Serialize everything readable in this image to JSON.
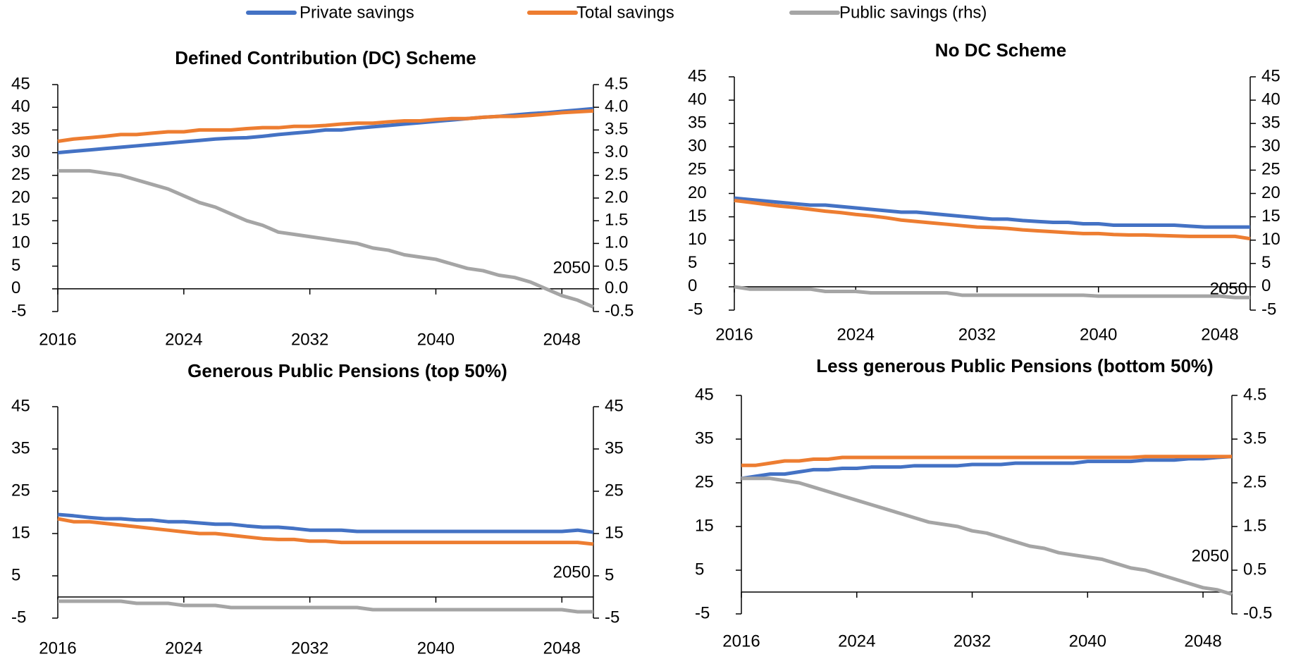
{
  "chart_data": [
    {
      "type": "line",
      "title": "Defined Contribution (DC) Scheme",
      "x": [
        2016,
        2017,
        2018,
        2019,
        2020,
        2021,
        2022,
        2023,
        2024,
        2025,
        2026,
        2027,
        2028,
        2029,
        2030,
        2031,
        2032,
        2033,
        2034,
        2035,
        2036,
        2037,
        2038,
        2039,
        2040,
        2041,
        2042,
        2043,
        2044,
        2045,
        2046,
        2047,
        2048,
        2049,
        2050
      ],
      "xlim": [
        2016,
        2050
      ],
      "xticks": [
        2016,
        2024,
        2032,
        2040,
        2048
      ],
      "ylim": [
        -5,
        45
      ],
      "yticks": [
        -5,
        0,
        5,
        10,
        15,
        20,
        25,
        30,
        35,
        40,
        45
      ],
      "y2lim": [
        -0.5,
        4.5
      ],
      "y2ticks": [
        -0.5,
        {
          "value": 0,
          "label": "0.0"
        },
        0.5,
        {
          "value": 1,
          "label": "1.0"
        },
        1.5,
        {
          "value": 2,
          "label": "2.0"
        },
        2.5,
        {
          "value": 3,
          "label": "3.0"
        },
        3.5,
        {
          "value": 4,
          "label": "4.0"
        },
        4.5
      ],
      "annotation": "2050",
      "series": [
        {
          "name": "Private savings",
          "color": "#4472c4",
          "values": [
            30,
            30.3,
            30.6,
            30.9,
            31.2,
            31.5,
            31.8,
            32.1,
            32.4,
            32.7,
            33,
            33.2,
            33.3,
            33.6,
            34,
            34.3,
            34.6,
            35,
            35,
            35.4,
            35.7,
            36,
            36.3,
            36.6,
            36.9,
            37.2,
            37.5,
            37.8,
            38,
            38.3,
            38.6,
            38.8,
            39.1,
            39.4,
            39.7
          ]
        },
        {
          "name": "Total savings",
          "color": "#ed7d31",
          "values": [
            32.5,
            33,
            33.3,
            33.6,
            34,
            34,
            34.3,
            34.6,
            34.6,
            35,
            35,
            35,
            35.3,
            35.5,
            35.5,
            35.8,
            35.8,
            36,
            36.3,
            36.5,
            36.5,
            36.8,
            37,
            37,
            37.3,
            37.5,
            37.5,
            37.8,
            38,
            38,
            38.2,
            38.5,
            38.8,
            39,
            39.2
          ]
        },
        {
          "name": "Public savings (rhs)",
          "color": "#a5a5a5",
          "axis": "y2",
          "values": [
            2.6,
            2.6,
            2.6,
            2.55,
            2.5,
            2.4,
            2.3,
            2.2,
            2.05,
            1.9,
            1.8,
            1.65,
            1.5,
            1.4,
            1.25,
            1.2,
            1.15,
            1.1,
            1.05,
            1.0,
            0.9,
            0.85,
            0.75,
            0.7,
            0.65,
            0.55,
            0.45,
            0.4,
            0.3,
            0.25,
            0.15,
            0.0,
            -0.15,
            -0.25,
            -0.4
          ]
        }
      ]
    },
    {
      "type": "line",
      "title": "No DC Scheme",
      "x": [
        2016,
        2017,
        2018,
        2019,
        2020,
        2021,
        2022,
        2023,
        2024,
        2025,
        2026,
        2027,
        2028,
        2029,
        2030,
        2031,
        2032,
        2033,
        2034,
        2035,
        2036,
        2037,
        2038,
        2039,
        2040,
        2041,
        2042,
        2043,
        2044,
        2045,
        2046,
        2047,
        2048,
        2049,
        2050
      ],
      "xlim": [
        2016,
        2050
      ],
      "xticks": [
        2016,
        2024,
        2032,
        2040,
        2048
      ],
      "ylim": [
        -5,
        45
      ],
      "yticks": [
        -5,
        0,
        5,
        10,
        15,
        20,
        25,
        30,
        35,
        40,
        45
      ],
      "y2lim": [
        -5,
        45
      ],
      "y2ticks": [
        -5,
        0,
        5,
        10,
        15,
        20,
        25,
        30,
        35,
        40,
        45
      ],
      "annotation": "2050",
      "series": [
        {
          "color": "#4472c4",
          "values": [
            19,
            18.7,
            18.4,
            18.1,
            17.8,
            17.5,
            17.5,
            17.2,
            16.9,
            16.6,
            16.3,
            16,
            16,
            15.7,
            15.4,
            15.1,
            14.8,
            14.5,
            14.5,
            14.2,
            14,
            13.8,
            13.8,
            13.5,
            13.5,
            13.2,
            13.2,
            13.2,
            13.2,
            13.2,
            13,
            12.8,
            12.8,
            12.8,
            12.8
          ]
        },
        {
          "color": "#ed7d31",
          "values": [
            18.5,
            18.1,
            17.7,
            17.3,
            17,
            16.6,
            16.2,
            15.9,
            15.5,
            15.2,
            14.8,
            14.3,
            14,
            13.7,
            13.4,
            13.1,
            12.8,
            12.7,
            12.5,
            12.2,
            12,
            11.8,
            11.6,
            11.4,
            11.4,
            11.2,
            11.1,
            11.1,
            11,
            10.9,
            10.8,
            10.8,
            10.8,
            10.8,
            10.3
          ]
        },
        {
          "color": "#a5a5a5",
          "axis": "y2",
          "values": [
            0,
            -0.5,
            -0.5,
            -0.5,
            -0.5,
            -0.5,
            -1,
            -1,
            -1,
            -1.3,
            -1.3,
            -1.3,
            -1.3,
            -1.3,
            -1.3,
            -1.8,
            -1.8,
            -1.8,
            -1.8,
            -1.8,
            -1.8,
            -1.8,
            -1.8,
            -1.8,
            -2,
            -2,
            -2,
            -2,
            -2,
            -2,
            -2,
            -2,
            -2,
            -2.3,
            -2.3
          ]
        }
      ]
    },
    {
      "type": "line",
      "title": "Generous Public Pensions (top 50%)",
      "x": [
        2016,
        2017,
        2018,
        2019,
        2020,
        2021,
        2022,
        2023,
        2024,
        2025,
        2026,
        2027,
        2028,
        2029,
        2030,
        2031,
        2032,
        2033,
        2034,
        2035,
        2036,
        2037,
        2038,
        2039,
        2040,
        2041,
        2042,
        2043,
        2044,
        2045,
        2046,
        2047,
        2048,
        2049,
        2050
      ],
      "xlim": [
        2016,
        2050
      ],
      "xticks": [
        2016,
        2024,
        2032,
        2040,
        2048
      ],
      "ylim": [
        -5,
        45
      ],
      "yticks": [
        -5,
        5,
        15,
        25,
        35,
        45
      ],
      "y2lim": [
        -5,
        45
      ],
      "y2ticks": [
        -5,
        5,
        15,
        25,
        35,
        45
      ],
      "annotation": "2050",
      "series": [
        {
          "color": "#4472c4",
          "values": [
            19.5,
            19.2,
            18.8,
            18.5,
            18.5,
            18.2,
            18.2,
            17.8,
            17.8,
            17.5,
            17.2,
            17.2,
            16.8,
            16.5,
            16.5,
            16.2,
            15.8,
            15.8,
            15.8,
            15.5,
            15.5,
            15.5,
            15.5,
            15.5,
            15.5,
            15.5,
            15.5,
            15.5,
            15.5,
            15.5,
            15.5,
            15.5,
            15.5,
            15.8,
            15.3
          ]
        },
        {
          "color": "#ed7d31",
          "values": [
            18.5,
            17.8,
            17.8,
            17.4,
            17,
            16.6,
            16.2,
            15.8,
            15.4,
            15,
            15,
            14.6,
            14.2,
            13.8,
            13.6,
            13.6,
            13.2,
            13.2,
            12.9,
            12.9,
            12.9,
            12.9,
            12.9,
            12.9,
            12.9,
            12.9,
            12.9,
            12.9,
            12.9,
            12.9,
            12.9,
            12.9,
            12.9,
            12.9,
            12.5
          ]
        },
        {
          "color": "#a5a5a5",
          "axis": "y2",
          "values": [
            -1,
            -1,
            -1,
            -1,
            -1,
            -1.5,
            -1.5,
            -1.5,
            -2,
            -2,
            -2,
            -2.5,
            -2.5,
            -2.5,
            -2.5,
            -2.5,
            -2.5,
            -2.5,
            -2.5,
            -2.5,
            -3,
            -3,
            -3,
            -3,
            -3,
            -3,
            -3,
            -3,
            -3,
            -3,
            -3,
            -3,
            -3,
            -3.5,
            -3.5
          ]
        }
      ]
    },
    {
      "type": "line",
      "title": "Less generous Public Pensions (bottom 50%)",
      "x": [
        2016,
        2017,
        2018,
        2019,
        2020,
        2021,
        2022,
        2023,
        2024,
        2025,
        2026,
        2027,
        2028,
        2029,
        2030,
        2031,
        2032,
        2033,
        2034,
        2035,
        2036,
        2037,
        2038,
        2039,
        2040,
        2041,
        2042,
        2043,
        2044,
        2045,
        2046,
        2047,
        2048,
        2049,
        2050
      ],
      "xlim": [
        2016,
        2050
      ],
      "xticks": [
        2016,
        2024,
        2032,
        2040,
        2048
      ],
      "ylim": [
        -5,
        45
      ],
      "yticks": [
        -5,
        5,
        15,
        25,
        35,
        45
      ],
      "y2lim": [
        -0.5,
        4.5
      ],
      "y2ticks": [
        -0.5,
        0.5,
        1.5,
        2.5,
        3.5,
        4.5
      ],
      "annotation": "2050",
      "series": [
        {
          "color": "#4472c4",
          "values": [
            26,
            26.5,
            27,
            27,
            27.5,
            28,
            28,
            28.3,
            28.3,
            28.6,
            28.6,
            28.6,
            28.9,
            28.9,
            28.9,
            28.9,
            29.2,
            29.2,
            29.2,
            29.5,
            29.5,
            29.5,
            29.5,
            29.5,
            29.9,
            29.9,
            29.9,
            29.9,
            30.2,
            30.2,
            30.2,
            30.5,
            30.5,
            30.8,
            31
          ]
        },
        {
          "color": "#ed7d31",
          "values": [
            29,
            29,
            29.5,
            30,
            30,
            30.4,
            30.4,
            30.8,
            30.8,
            30.8,
            30.8,
            30.8,
            30.8,
            30.8,
            30.8,
            30.8,
            30.8,
            30.8,
            30.8,
            30.8,
            30.8,
            30.8,
            30.8,
            30.8,
            30.8,
            30.8,
            30.8,
            30.8,
            31,
            31,
            31,
            31,
            31,
            31,
            31
          ]
        },
        {
          "color": "#a5a5a5",
          "axis": "y2",
          "values": [
            2.6,
            2.6,
            2.6,
            2.55,
            2.5,
            2.4,
            2.3,
            2.2,
            2.1,
            2.0,
            1.9,
            1.8,
            1.7,
            1.6,
            1.55,
            1.5,
            1.4,
            1.35,
            1.25,
            1.15,
            1.05,
            1.0,
            0.9,
            0.85,
            0.8,
            0.75,
            0.65,
            0.55,
            0.5,
            0.4,
            0.3,
            0.2,
            0.1,
            0.05,
            -0.05
          ]
        }
      ]
    }
  ]
}
